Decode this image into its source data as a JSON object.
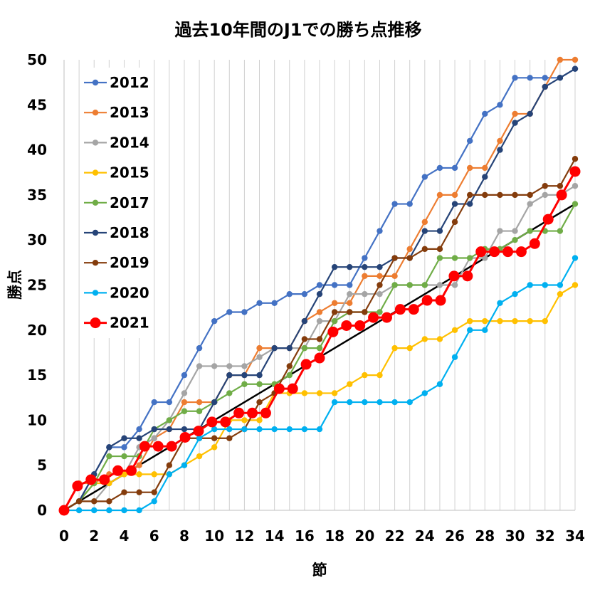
{
  "chart_data": {
    "type": "line",
    "title": "過去10年間のJ1での勝ち点推移",
    "xlabel": "節",
    "ylabel": "勝点",
    "xlim": [
      0,
      34
    ],
    "ylim": [
      0,
      50
    ],
    "x_ticks": [
      0,
      2,
      4,
      6,
      8,
      10,
      12,
      14,
      16,
      18,
      20,
      22,
      24,
      26,
      28,
      30,
      32,
      34
    ],
    "y_ticks": [
      0,
      5,
      10,
      15,
      20,
      25,
      30,
      35,
      40,
      45,
      50
    ],
    "grid": "vertical-only",
    "legend_position": "top-left",
    "reference_line": {
      "from": [
        0,
        0
      ],
      "to": [
        34,
        34
      ],
      "color": "#000000"
    },
    "series": [
      {
        "name": "2012",
        "color": "#4472C4",
        "values": [
          0,
          1,
          4,
          7,
          7,
          9,
          12,
          12,
          15,
          18,
          21,
          22,
          22,
          23,
          23,
          24,
          24,
          25,
          25,
          25,
          28,
          31,
          34,
          34,
          37,
          38,
          38,
          41,
          44,
          45,
          48,
          48,
          48,
          48,
          49
        ]
      },
      {
        "name": "2013",
        "color": "#ED7D31",
        "values": [
          0,
          3,
          3,
          4,
          4,
          5,
          8,
          9,
          12,
          12,
          12,
          15,
          15,
          18,
          18,
          18,
          21,
          22,
          23,
          23,
          26,
          26,
          26,
          29,
          32,
          35,
          35,
          38,
          38,
          41,
          44,
          44,
          47,
          50,
          50
        ]
      },
      {
        "name": "2014",
        "color": "#A5A5A5",
        "values": [
          0,
          1,
          1,
          3,
          4,
          7,
          8,
          10,
          13,
          16,
          16,
          16,
          16,
          17,
          18,
          18,
          18,
          21,
          21,
          24,
          24,
          24,
          25,
          25,
          25,
          25,
          25,
          28,
          28,
          31,
          31,
          34,
          35,
          35,
          36
        ]
      },
      {
        "name": "2015",
        "color": "#FFC000",
        "values": [
          0,
          1,
          3,
          3,
          4,
          4,
          4,
          4,
          5,
          6,
          7,
          10,
          10,
          10,
          13,
          13,
          13,
          13,
          13,
          14,
          15,
          15,
          18,
          18,
          19,
          19,
          20,
          21,
          21,
          21,
          21,
          21,
          21,
          24,
          25
        ]
      },
      {
        "name": "2017",
        "color": "#70AD47",
        "values": [
          0,
          1,
          3,
          6,
          6,
          6,
          9,
          10,
          11,
          11,
          12,
          13,
          14,
          14,
          14,
          15,
          18,
          18,
          21,
          22,
          22,
          22,
          25,
          25,
          25,
          28,
          28,
          28,
          29,
          29,
          30,
          31,
          31,
          31,
          34
        ]
      },
      {
        "name": "2018",
        "color": "#264478",
        "values": [
          0,
          1,
          4,
          7,
          8,
          8,
          9,
          9,
          9,
          9,
          12,
          15,
          15,
          15,
          18,
          18,
          21,
          24,
          27,
          27,
          27,
          27,
          28,
          28,
          31,
          31,
          34,
          34,
          37,
          40,
          43,
          44,
          47,
          48,
          49
        ]
      },
      {
        "name": "2019",
        "color": "#843C0C",
        "values": [
          0,
          1,
          1,
          1,
          2,
          2,
          2,
          5,
          8,
          8,
          8,
          8,
          9,
          12,
          13,
          16,
          19,
          19,
          22,
          22,
          22,
          25,
          28,
          28,
          29,
          29,
          32,
          35,
          35,
          35,
          35,
          35,
          36,
          36,
          39
        ]
      },
      {
        "name": "2020",
        "color": "#00B0F0",
        "values": [
          0,
          0,
          0,
          0,
          0,
          0,
          1,
          4,
          5,
          8,
          9,
          9,
          9,
          9,
          9,
          9,
          9,
          9,
          12,
          12,
          12,
          12,
          12,
          12,
          13,
          14,
          17,
          20,
          20,
          23,
          24,
          25,
          25,
          25,
          28
        ]
      },
      {
        "name": "2021",
        "color": "#FF0000",
        "values": [
          0,
          2.7,
          3.4,
          3.4,
          4.4,
          4.4,
          7.1,
          7.1,
          7.1,
          8.1,
          8.8,
          9.8,
          9.8,
          10.8,
          10.8,
          10.8,
          13.5,
          13.5,
          16.2,
          16.9,
          19.8,
          20.5,
          20.5,
          21.4,
          21.4,
          22.3,
          22.3,
          23.3,
          23.3,
          26,
          26,
          28.7,
          28.7,
          28.7,
          28.7,
          29.6,
          32.3,
          35,
          37.6
        ]
      }
    ]
  }
}
